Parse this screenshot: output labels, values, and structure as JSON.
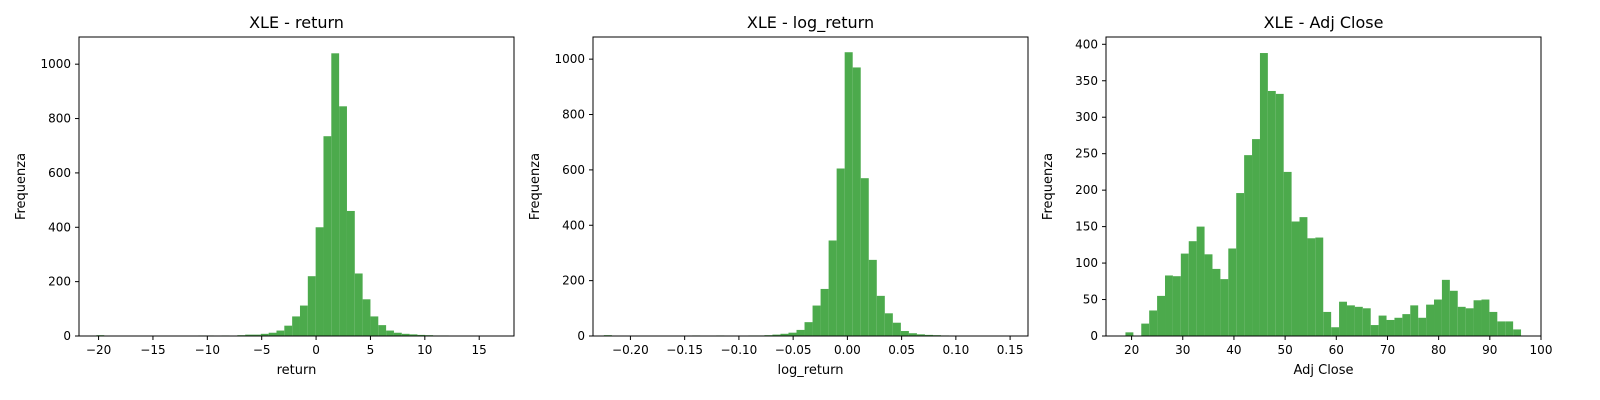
{
  "chart_data": [
    {
      "type": "bar",
      "title": "XLE - return",
      "xlabel": "return",
      "ylabel": "Frequenza",
      "xlim": [
        -21.8,
        18.2
      ],
      "ylim": [
        0,
        1100
      ],
      "xticks": [
        -20,
        -15,
        -10,
        -5,
        0,
        5,
        10,
        15
      ],
      "xtick_labels": [
        "−20",
        "−15",
        "−10",
        "−5",
        "0",
        "5",
        "10",
        "15"
      ],
      "yticks": [
        0,
        200,
        400,
        600,
        800,
        1000
      ],
      "ytick_labels": [
        "0",
        "200",
        "400",
        "600",
        "800",
        "1000"
      ],
      "bar_color": "#4caa4c",
      "bin_start": -20.2,
      "bin_width": 0.72,
      "values": [
        3,
        0,
        0,
        0,
        0,
        0,
        0,
        1,
        1,
        0,
        0,
        0,
        0,
        2,
        2,
        1,
        2,
        1,
        3,
        5,
        5,
        8,
        12,
        20,
        38,
        72,
        112,
        220,
        400,
        735,
        1040,
        845,
        460,
        230,
        135,
        72,
        40,
        20,
        12,
        8,
        6,
        4,
        3,
        2,
        2,
        1,
        1,
        1,
        0,
        0,
        1
      ]
    },
    {
      "type": "bar",
      "title": "XLE - log_return",
      "xlabel": "log_return",
      "ylabel": "Frequenza",
      "xlim": [
        -0.2345,
        0.1665
      ],
      "ylim": [
        0,
        1080
      ],
      "xticks": [
        -0.2,
        -0.15,
        -0.1,
        -0.05,
        0.0,
        0.05,
        0.1,
        0.15
      ],
      "xtick_labels": [
        "−0.20",
        "−0.15",
        "−0.10",
        "−0.05",
        "0.00",
        "0.05",
        "0.10",
        "0.15"
      ],
      "yticks": [
        0,
        200,
        400,
        600,
        800,
        1000
      ],
      "ytick_labels": [
        "0",
        "200",
        "400",
        "600",
        "800",
        "1000"
      ],
      "bar_color": "#4caa4c",
      "bin_start": -0.2245,
      "bin_width": 0.0074,
      "values": [
        3,
        0,
        0,
        0,
        0,
        0,
        0,
        0,
        0,
        1,
        1,
        2,
        1,
        1,
        2,
        1,
        1,
        0,
        2,
        2,
        3,
        5,
        8,
        12,
        22,
        50,
        110,
        170,
        345,
        605,
        1025,
        970,
        570,
        275,
        145,
        82,
        48,
        18,
        10,
        6,
        4,
        3,
        2,
        1,
        1,
        1,
        0,
        1,
        1,
        1,
        1
      ]
    },
    {
      "type": "bar",
      "title": "XLE - Adj Close",
      "xlabel": "Adj Close",
      "ylabel": "Frequenza",
      "xlim": [
        15,
        100
      ],
      "ylim": [
        0,
        410
      ],
      "xticks": [
        20,
        30,
        40,
        50,
        60,
        70,
        80,
        90,
        100
      ],
      "xtick_labels": [
        "20",
        "30",
        "40",
        "50",
        "60",
        "70",
        "80",
        "90",
        "100"
      ],
      "yticks": [
        0,
        50,
        100,
        150,
        200,
        250,
        300,
        350,
        400
      ],
      "ytick_labels": [
        "0",
        "50",
        "100",
        "150",
        "200",
        "250",
        "300",
        "350",
        "400"
      ],
      "bar_color": "#4caa4c",
      "bin_start": 18.8,
      "bin_width": 1.546,
      "values": [
        5,
        0,
        17,
        35,
        55,
        83,
        82,
        113,
        130,
        150,
        112,
        92,
        78,
        120,
        196,
        248,
        270,
        388,
        336,
        332,
        225,
        157,
        163,
        134,
        135,
        33,
        12,
        47,
        42,
        40,
        38,
        15,
        28,
        22,
        25,
        30,
        42,
        25,
        43,
        50,
        77,
        62,
        40,
        38,
        49,
        50,
        33,
        20,
        20,
        9
      ]
    }
  ]
}
